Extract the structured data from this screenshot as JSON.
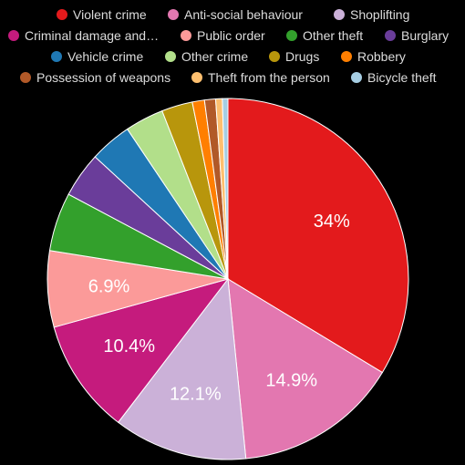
{
  "chart_data": {
    "type": "pie",
    "title": "",
    "legend_position": "top",
    "series": [
      {
        "name": "Violent crime",
        "value": 34.0,
        "color": "#e31a1c",
        "label": "34%"
      },
      {
        "name": "Anti-social behaviour",
        "value": 14.9,
        "color": "#e377b0",
        "label": "14.9%"
      },
      {
        "name": "Shoplifting",
        "value": 12.1,
        "color": "#cbb1d8",
        "label": "12.1%"
      },
      {
        "name": "Criminal damage and…",
        "value": 10.4,
        "color": "#c51b7d",
        "label": "10.4%"
      },
      {
        "name": "Public order",
        "value": 6.9,
        "color": "#fb9a99",
        "label": "6.9%"
      },
      {
        "name": "Other theft",
        "value": 5.3,
        "color": "#33a02c",
        "label": ""
      },
      {
        "name": "Burglary",
        "value": 4.1,
        "color": "#6a3d9a",
        "label": ""
      },
      {
        "name": "Vehicle crime",
        "value": 3.8,
        "color": "#1f78b4",
        "label": ""
      },
      {
        "name": "Other crime",
        "value": 3.5,
        "color": "#b2df8a",
        "label": ""
      },
      {
        "name": "Drugs",
        "value": 2.8,
        "color": "#b8960c",
        "label": ""
      },
      {
        "name": "Robbery",
        "value": 1.1,
        "color": "#ff7f00",
        "label": ""
      },
      {
        "name": "Possession of weapons",
        "value": 1.0,
        "color": "#b15928",
        "label": ""
      },
      {
        "name": "Theft from the person",
        "value": 0.6,
        "color": "#fdbf6f",
        "label": ""
      },
      {
        "name": "Bicycle theft",
        "value": 0.5,
        "color": "#a6cee3",
        "label": ""
      }
    ]
  }
}
